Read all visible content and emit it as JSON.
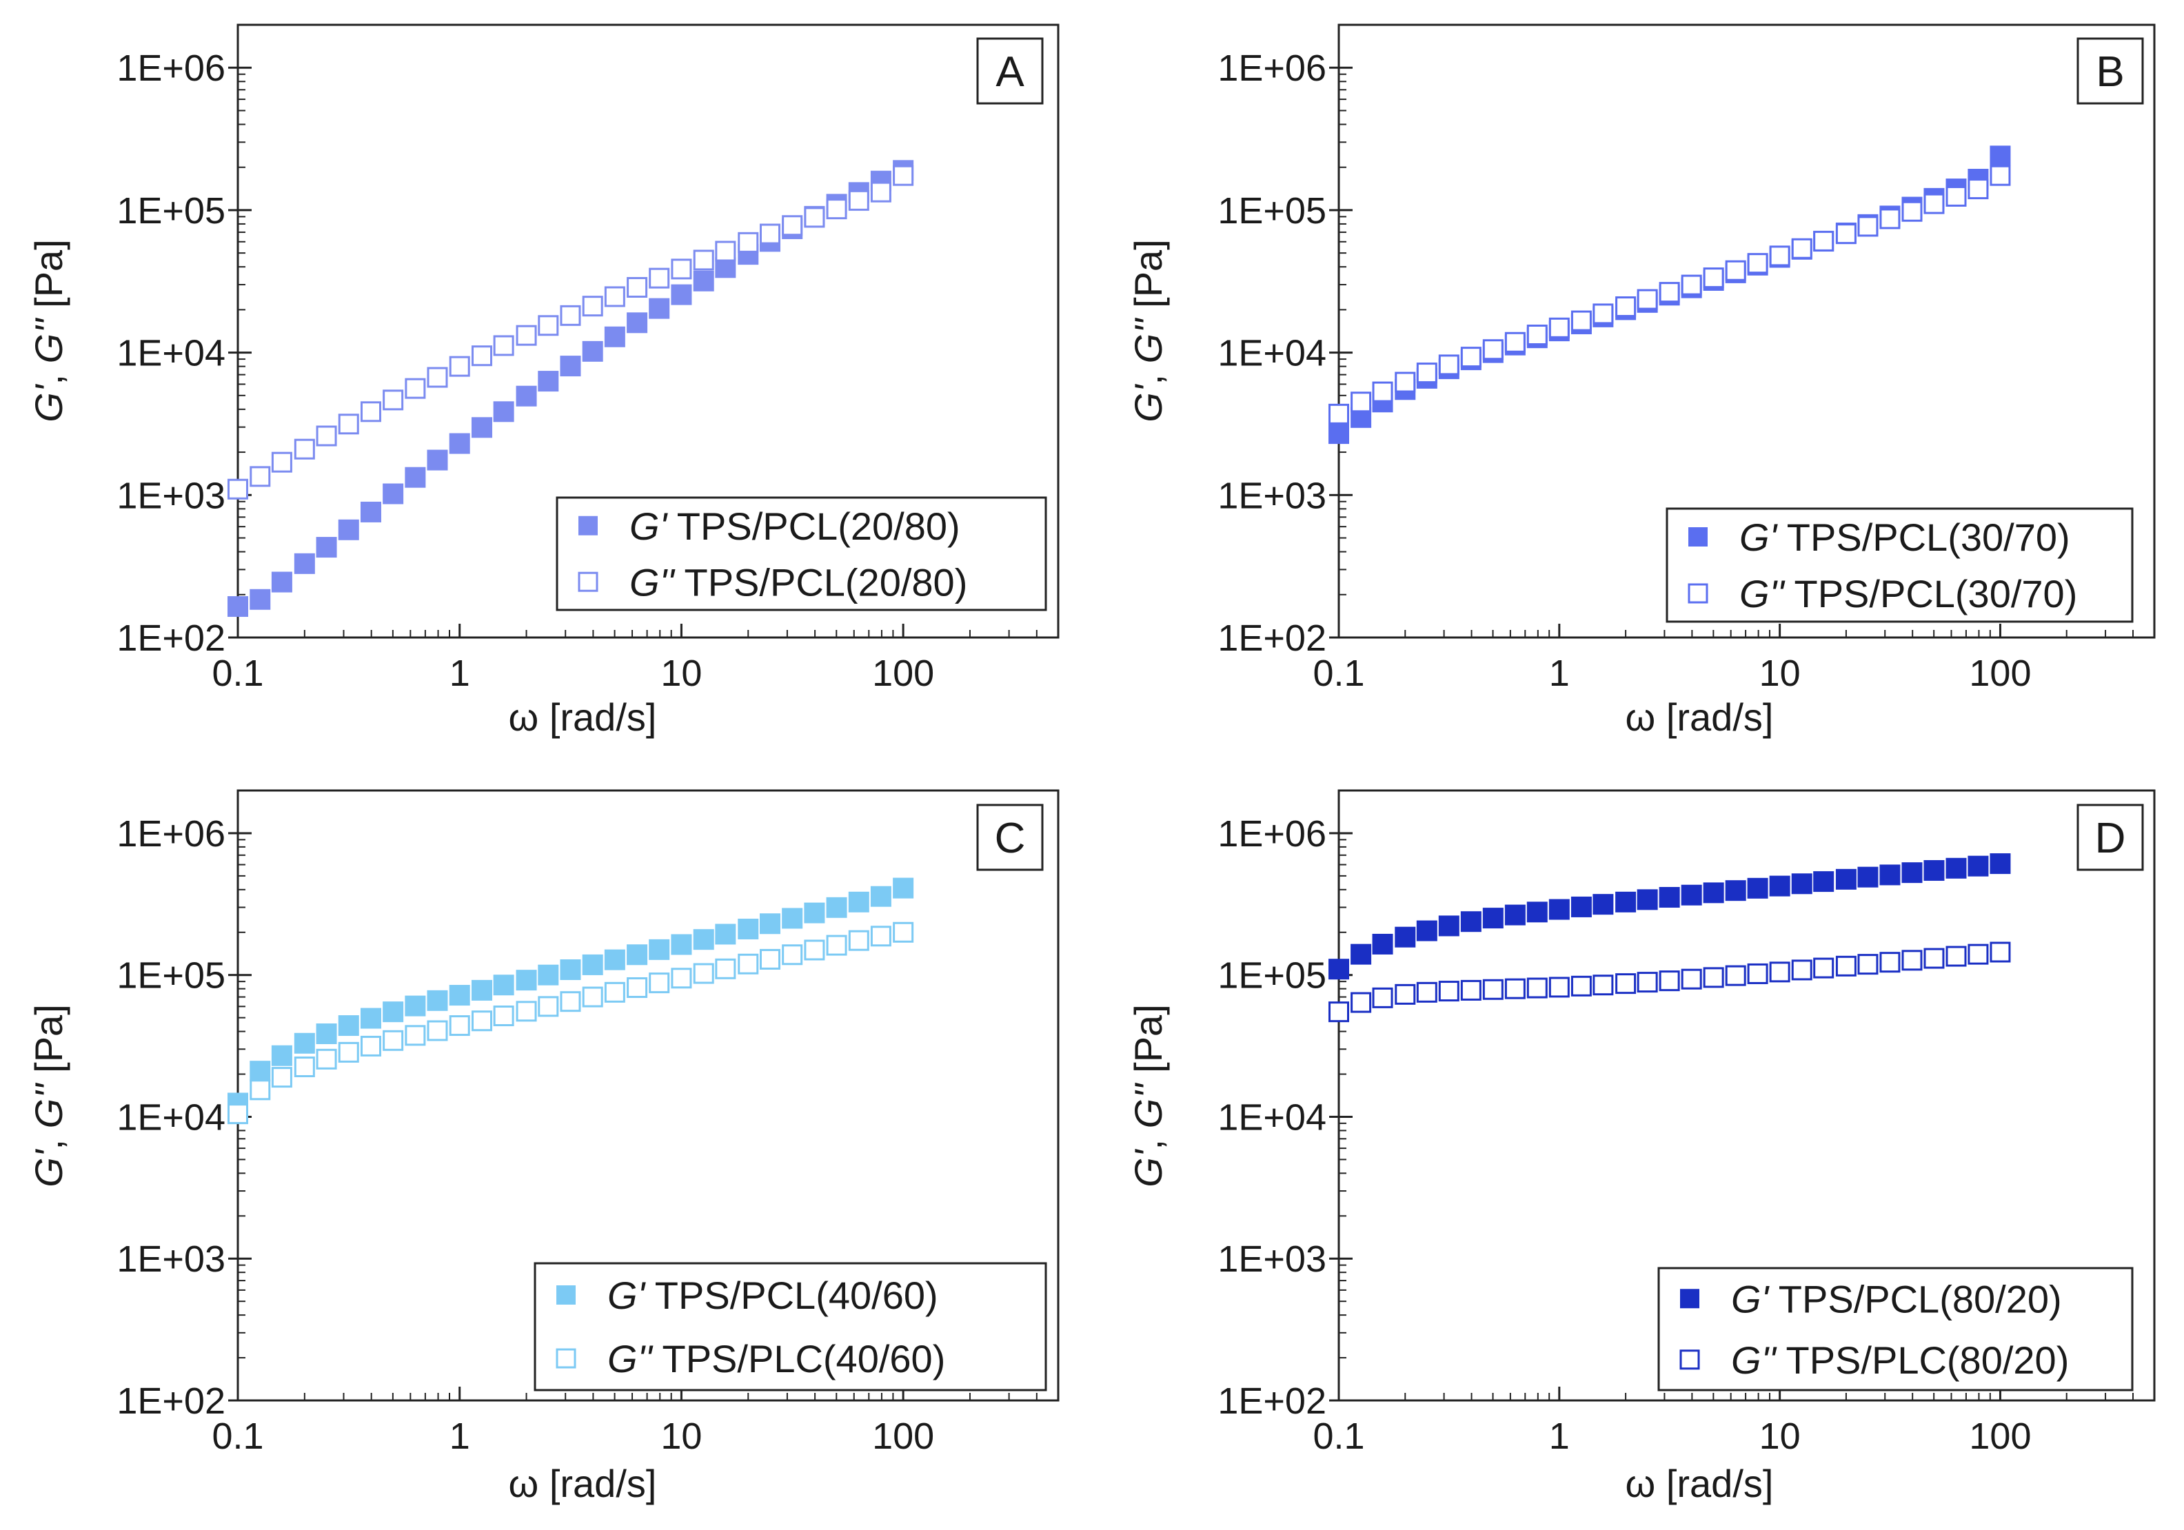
{
  "chart_data": [
    {
      "type": "scatter",
      "panel_label": "A",
      "xlabel": "ω  [rad/s]",
      "ylabel_parts": [
        "G'",
        ", ",
        "G''",
        " [Pa]"
      ],
      "x_scale": "log",
      "y_scale": "log",
      "xlim": [
        0.1,
        500
      ],
      "ylim": [
        100,
        2000000
      ],
      "xticks": [
        0.1,
        1,
        10,
        100
      ],
      "xtick_labels": [
        "0.1",
        "1",
        "10",
        "100"
      ],
      "yticks": [
        100,
        1000,
        10000,
        100000,
        1000000
      ],
      "ytick_labels": [
        "1E+02",
        "1E+03",
        "1E+04",
        "1E+05",
        "1E+06"
      ],
      "grid": false,
      "legend_placement": "bottom-right",
      "series": [
        {
          "name_symbol": "G'",
          "name_text": "TPS/PCL(20/80)",
          "filled": true,
          "color": "#7b8bf0",
          "x": [
            0.1,
            0.126,
            0.158,
            0.2,
            0.251,
            0.316,
            0.398,
            0.501,
            0.631,
            0.794,
            1,
            1.26,
            1.58,
            2,
            2.51,
            3.16,
            3.98,
            5.01,
            6.31,
            7.94,
            10,
            12.6,
            15.8,
            20,
            25.1,
            31.6,
            39.8,
            50.1,
            63.1,
            79.4,
            100
          ],
          "y": [
            165,
            185,
            245,
            330,
            430,
            570,
            760,
            1020,
            1330,
            1760,
            2300,
            2980,
            3850,
            4950,
            6300,
            8050,
            10200,
            12900,
            16200,
            20400,
            25500,
            31800,
            39500,
            48900,
            60300,
            74000,
            90500,
            110000,
            133000,
            160000,
            190000
          ]
        },
        {
          "name_symbol": "G''",
          "name_text": "TPS/PCL(20/80)",
          "filled": false,
          "color": "#7b8bf0",
          "x": [
            0.1,
            0.126,
            0.158,
            0.2,
            0.251,
            0.316,
            0.398,
            0.501,
            0.631,
            0.794,
            1,
            1.26,
            1.58,
            2,
            2.51,
            3.16,
            3.98,
            5.01,
            6.31,
            7.94,
            10,
            12.6,
            15.8,
            20,
            25.1,
            31.6,
            39.8,
            50.1,
            63.1,
            79.4,
            100
          ],
          "y": [
            1100,
            1350,
            1700,
            2100,
            2600,
            3150,
            3850,
            4650,
            5600,
            6700,
            8000,
            9500,
            11200,
            13200,
            15500,
            18200,
            21200,
            24700,
            28700,
            33300,
            38600,
            44600,
            51500,
            59300,
            68000,
            78000,
            89000,
            102000,
            117000,
            134000,
            175000
          ]
        }
      ]
    },
    {
      "type": "scatter",
      "panel_label": "B",
      "xlabel": "ω [rad/s]",
      "ylabel_parts": [
        "G'",
        ", ",
        "G''",
        " [Pa]"
      ],
      "x_scale": "log",
      "y_scale": "log",
      "xlim": [
        0.1,
        500
      ],
      "ylim": [
        100,
        2000000
      ],
      "xticks": [
        0.1,
        1,
        10,
        100
      ],
      "xtick_labels": [
        "0.1",
        "1",
        "10",
        "100"
      ],
      "yticks": [
        100,
        1000,
        10000,
        100000,
        1000000
      ],
      "ytick_labels": [
        "1E+02",
        "1E+03",
        "1E+04",
        "1E+05",
        "1E+06"
      ],
      "grid": false,
      "legend_placement": "bottom-right",
      "series": [
        {
          "name_symbol": "G'",
          "name_text": "TPS/PCL(30/70)",
          "filled": true,
          "color": "#5a6ef0",
          "x": [
            0.1,
            0.126,
            0.158,
            0.2,
            0.251,
            0.316,
            0.398,
            0.501,
            0.631,
            0.794,
            1,
            1.26,
            1.58,
            2,
            2.51,
            3.16,
            3.98,
            5.01,
            6.31,
            7.94,
            10,
            12.6,
            15.8,
            20,
            25.1,
            31.6,
            39.8,
            50.1,
            63.1,
            79.4,
            100
          ],
          "y": [
            2700,
            3500,
            4500,
            5500,
            6600,
            7700,
            8900,
            10000,
            11300,
            12700,
            14200,
            15900,
            17800,
            20000,
            22500,
            25300,
            28500,
            32100,
            36300,
            41100,
            46600,
            53100,
            60500,
            69200,
            79200,
            91000,
            105000,
            121000,
            141000,
            165000,
            240000
          ]
        },
        {
          "name_symbol": "G''",
          "name_text": "TPS/PCL(30/70)",
          "filled": false,
          "color": "#5a6ef0",
          "x": [
            0.1,
            0.126,
            0.158,
            0.2,
            0.251,
            0.316,
            0.398,
            0.501,
            0.631,
            0.794,
            1,
            1.26,
            1.58,
            2,
            2.51,
            3.16,
            3.98,
            5.01,
            6.31,
            7.94,
            10,
            12.6,
            15.8,
            20,
            25.1,
            31.6,
            39.8,
            50.1,
            63.1,
            79.4,
            100
          ],
          "y": [
            3700,
            4500,
            5300,
            6200,
            7200,
            8200,
            9300,
            10500,
            11800,
            13300,
            14900,
            16700,
            18700,
            21000,
            23600,
            26500,
            29800,
            33500,
            37600,
            42300,
            47700,
            53700,
            60600,
            68300,
            77000,
            87000,
            98000,
            111000,
            125000,
            141000,
            175000
          ]
        }
      ]
    },
    {
      "type": "scatter",
      "panel_label": "C",
      "xlabel": "ω [rad/s]",
      "ylabel_parts": [
        "G'",
        ", ",
        "G''",
        " [Pa]"
      ],
      "x_scale": "log",
      "y_scale": "log",
      "xlim": [
        0.1,
        500
      ],
      "ylim": [
        100,
        2000000
      ],
      "xticks": [
        0.1,
        1,
        10,
        100
      ],
      "xtick_labels": [
        "0.1",
        "1",
        "10",
        "100"
      ],
      "yticks": [
        100,
        1000,
        10000,
        100000,
        1000000
      ],
      "ytick_labels": [
        "1E+02",
        "1E+03",
        "1E+04",
        "1E+05",
        "1E+06"
      ],
      "grid": false,
      "legend_placement": "bottom-right",
      "series": [
        {
          "name_symbol": "G'",
          "name_text": "TPS/PCL(40/60)",
          "filled": true,
          "color": "#7ccaf4",
          "x": [
            0.1,
            0.126,
            0.158,
            0.2,
            0.251,
            0.316,
            0.398,
            0.501,
            0.631,
            0.794,
            1,
            1.26,
            1.58,
            2,
            2.51,
            3.16,
            3.98,
            5.01,
            6.31,
            7.94,
            10,
            12.6,
            15.8,
            20,
            25.1,
            31.6,
            39.8,
            50.1,
            63.1,
            79.4,
            100
          ],
          "y": [
            12500,
            21000,
            27000,
            33000,
            38500,
            44000,
            49500,
            55000,
            60500,
            66000,
            72000,
            78000,
            85000,
            92000,
            100000,
            109000,
            118000,
            128000,
            139000,
            151000,
            164000,
            178000,
            194000,
            211000,
            230000,
            251000,
            274000,
            299000,
            327000,
            358000,
            410000
          ]
        },
        {
          "name_symbol": "G''",
          "name_text": "TPS/PLC(40/60)",
          "filled": false,
          "color": "#7ccaf4",
          "x": [
            0.1,
            0.126,
            0.158,
            0.2,
            0.251,
            0.316,
            0.398,
            0.501,
            0.631,
            0.794,
            1,
            1.26,
            1.58,
            2,
            2.51,
            3.16,
            3.98,
            5.01,
            6.31,
            7.94,
            10,
            12.6,
            15.8,
            20,
            25.1,
            31.6,
            39.8,
            50.1,
            63.1,
            79.4,
            100
          ],
          "y": [
            10500,
            15500,
            19000,
            22500,
            25500,
            28500,
            31500,
            34500,
            37500,
            40500,
            44000,
            47500,
            51500,
            55500,
            60000,
            65000,
            70000,
            75500,
            81500,
            88000,
            95000,
            102500,
            110500,
            119500,
            129000,
            139000,
            150000,
            162000,
            175000,
            188000,
            200000
          ]
        }
      ]
    },
    {
      "type": "scatter",
      "panel_label": "D",
      "xlabel": "ω [rad/s]",
      "ylabel_parts": [
        "G'",
        ", ",
        "G''",
        " [Pa]"
      ],
      "x_scale": "log",
      "y_scale": "log",
      "xlim": [
        0.1,
        500
      ],
      "ylim": [
        100,
        2000000
      ],
      "xticks": [
        0.1,
        1,
        10,
        100
      ],
      "xtick_labels": [
        "0.1",
        "1",
        "10",
        "100"
      ],
      "yticks": [
        100,
        1000,
        10000,
        100000,
        1000000
      ],
      "ytick_labels": [
        "1E+02",
        "1E+03",
        "1E+04",
        "1E+05",
        "1E+06"
      ],
      "grid": false,
      "legend_placement": "bottom-right",
      "series": [
        {
          "name_symbol": "G'",
          "name_text": "TPS/PCL(80/20)",
          "filled": true,
          "color": "#1a2fc4",
          "x": [
            0.1,
            0.126,
            0.158,
            0.2,
            0.251,
            0.316,
            0.398,
            0.501,
            0.631,
            0.794,
            1,
            1.26,
            1.58,
            2,
            2.51,
            3.16,
            3.98,
            5.01,
            6.31,
            7.94,
            10,
            12.6,
            15.8,
            20,
            25.1,
            31.6,
            39.8,
            50.1,
            63.1,
            79.4,
            100
          ],
          "y": [
            110000,
            140000,
            165000,
            185000,
            205000,
            222000,
            238000,
            252000,
            265000,
            278000,
            290000,
            302000,
            315000,
            327000,
            340000,
            353000,
            366000,
            380000,
            394000,
            409000,
            424000,
            440000,
            456000,
            473000,
            490000,
            508000,
            527000,
            546000,
            566000,
            586000,
            610000
          ]
        },
        {
          "name_symbol": "G''",
          "name_text": "TPS/PLC(80/20)",
          "filled": false,
          "color": "#1a2fc4",
          "x": [
            0.1,
            0.126,
            0.158,
            0.2,
            0.251,
            0.316,
            0.398,
            0.501,
            0.631,
            0.794,
            1,
            1.26,
            1.58,
            2,
            2.51,
            3.16,
            3.98,
            5.01,
            6.31,
            7.94,
            10,
            12.6,
            15.8,
            20,
            25.1,
            31.6,
            39.8,
            50.1,
            63.1,
            79.4,
            100
          ],
          "y": [
            55000,
            64000,
            69000,
            73000,
            75500,
            77000,
            78000,
            79000,
            80000,
            81000,
            82000,
            83500,
            85000,
            87000,
            89000,
            91000,
            93500,
            96000,
            99000,
            102000,
            105000,
            108500,
            112000,
            115500,
            119000,
            123000,
            127000,
            131000,
            135500,
            140000,
            145000
          ]
        }
      ]
    }
  ]
}
